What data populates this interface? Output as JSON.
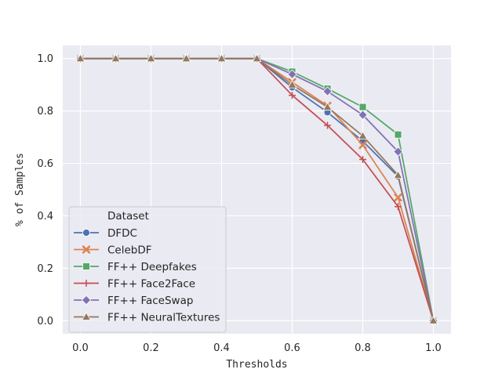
{
  "chart_data": {
    "type": "line",
    "title": "",
    "xlabel": "Thresholds",
    "ylabel": "% of Samples",
    "x": [
      0.0,
      0.1,
      0.2,
      0.3,
      0.4,
      0.5,
      0.6,
      0.7,
      0.8,
      0.9,
      1.0
    ],
    "xlim": [
      -0.05,
      1.05
    ],
    "ylim": [
      -0.05,
      1.05
    ],
    "xticks": [
      0.0,
      0.2,
      0.4,
      0.6,
      0.8,
      1.0
    ],
    "xtick_labels": [
      "0.0",
      "0.2",
      "0.4",
      "0.6",
      "0.8",
      "1.0"
    ],
    "yticks": [
      0.0,
      0.2,
      0.4,
      0.6,
      0.8,
      1.0
    ],
    "ytick_labels": [
      "0.0",
      "0.2",
      "0.4",
      "0.6",
      "0.8",
      "1.0"
    ],
    "grid": true,
    "legend": {
      "title": "Dataset",
      "placement": "lower-left"
    },
    "series": [
      {
        "name": "DFDC",
        "color": "#4c72b0",
        "marker": "circle",
        "values": [
          1.0,
          1.0,
          1.0,
          1.0,
          1.0,
          1.0,
          0.89,
          0.795,
          0.685,
          0.55,
          0.0
        ]
      },
      {
        "name": "CelebDF",
        "color": "#dd8452",
        "marker": "x",
        "values": [
          1.0,
          1.0,
          1.0,
          1.0,
          1.0,
          1.0,
          0.91,
          0.82,
          0.67,
          0.47,
          0.0
        ]
      },
      {
        "name": "FF++ Deepfakes",
        "color": "#55a868",
        "marker": "square",
        "values": [
          1.0,
          1.0,
          1.0,
          1.0,
          1.0,
          1.0,
          0.95,
          0.885,
          0.815,
          0.71,
          0.0
        ]
      },
      {
        "name": "FF++ Face2Face",
        "color": "#c44e52",
        "marker": "plus",
        "values": [
          1.0,
          1.0,
          1.0,
          1.0,
          1.0,
          1.0,
          0.86,
          0.745,
          0.615,
          0.435,
          0.0
        ]
      },
      {
        "name": "FF++ FaceSwap",
        "color": "#8172b3",
        "marker": "diamond",
        "values": [
          1.0,
          1.0,
          1.0,
          1.0,
          1.0,
          1.0,
          0.94,
          0.875,
          0.785,
          0.645,
          0.0
        ]
      },
      {
        "name": "FF++ NeuralTextures",
        "color": "#937860",
        "marker": "triangle",
        "values": [
          1.0,
          1.0,
          1.0,
          1.0,
          1.0,
          1.0,
          0.9,
          0.815,
          0.705,
          0.555,
          0.0
        ]
      }
    ]
  }
}
